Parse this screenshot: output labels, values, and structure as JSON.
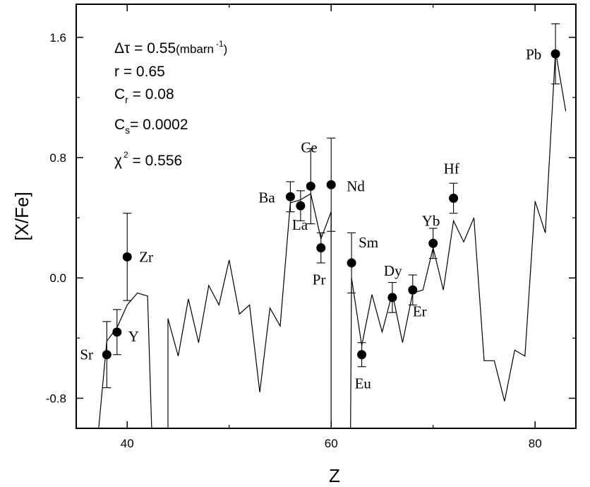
{
  "chart_data": {
    "type": "scatter",
    "xlabel": "Z",
    "ylabel": "[X/Fe]",
    "xlim": [
      35,
      84
    ],
    "ylim": [
      -1.0,
      1.82
    ],
    "x_ticks": [
      40,
      60,
      80
    ],
    "x_tick_labels": [
      "40",
      "60",
      "80"
    ],
    "y_ticks": [
      -0.8,
      0.0,
      0.8,
      1.6
    ],
    "y_tick_labels": [
      "-0.8",
      "0.0",
      "0.8",
      "1.6"
    ],
    "grid": false,
    "annotations": [
      {
        "text": "Δτ = 0.55",
        "unit": "(mbarn",
        "exp": "-1",
        "close": ")"
      },
      {
        "text": " r  = 0.65"
      },
      {
        "text": "C",
        "sub": "r",
        "rest": " = 0.08"
      },
      {
        "text": "C",
        "sub": "s",
        "rest": "= 0.0002"
      },
      {
        "text": "χ",
        "sup": "2",
        "rest": " = 0.556"
      }
    ],
    "points": [
      {
        "label": "Sr",
        "x": 38,
        "y": -0.51,
        "err": 0.22
      },
      {
        "label": "Y",
        "x": 39,
        "y": -0.36,
        "err": 0.15
      },
      {
        "label": "Zr",
        "x": 40,
        "y": 0.14,
        "err": 0.29
      },
      {
        "label": "Ba",
        "x": 56,
        "y": 0.54,
        "err": 0.1
      },
      {
        "label": "La",
        "x": 57,
        "y": 0.48,
        "err": 0.1
      },
      {
        "label": "Ce",
        "x": 58,
        "y": 0.61,
        "err": 0.25
      },
      {
        "label": "Pr",
        "x": 59,
        "y": 0.2,
        "err": 0.1
      },
      {
        "label": "Nd",
        "x": 60,
        "y": 0.62,
        "err": 0.31
      },
      {
        "label": "Sm",
        "x": 62,
        "y": 0.1,
        "err": 0.2
      },
      {
        "label": "Eu",
        "x": 63,
        "y": -0.51,
        "err": 0.08
      },
      {
        "label": "Dy",
        "x": 66,
        "y": -0.13,
        "err": 0.1
      },
      {
        "label": "Er",
        "x": 68,
        "y": -0.08,
        "err": 0.1
      },
      {
        "label": "Yb",
        "x": 70,
        "y": 0.23,
        "err": 0.1
      },
      {
        "label": "Hf",
        "x": 72,
        "y": 0.53,
        "err": 0.1
      },
      {
        "label": "Pb",
        "x": 82,
        "y": 1.49,
        "err": 0.2
      }
    ],
    "model_line": [
      [
        [
          37.2,
          -1.0
        ],
        [
          38.0,
          -0.42
        ],
        [
          39.0,
          -0.33
        ],
        [
          40.0,
          -0.18
        ],
        [
          41.0,
          -0.1
        ],
        [
          42.0,
          -0.12
        ],
        [
          42.4,
          -1.0
        ]
      ],
      [
        [
          44.0,
          -1.0
        ],
        [
          44.0,
          -0.27
        ],
        [
          45.0,
          -0.52
        ],
        [
          46.0,
          -0.14
        ],
        [
          47.0,
          -0.43
        ],
        [
          48.0,
          -0.05
        ],
        [
          49.0,
          -0.18
        ],
        [
          50.0,
          0.12
        ],
        [
          51.0,
          -0.24
        ],
        [
          52.0,
          -0.18
        ],
        [
          53.0,
          -0.76
        ],
        [
          54.0,
          -0.2
        ],
        [
          55.0,
          -0.32
        ],
        [
          56.0,
          0.5
        ],
        [
          57.0,
          0.52
        ],
        [
          58.0,
          0.56
        ],
        [
          59.0,
          0.26
        ],
        [
          60.0,
          0.44
        ],
        [
          60.0,
          -1.0
        ]
      ],
      [
        [
          61.9,
          -1.0
        ],
        [
          62.0,
          0.0
        ],
        [
          63.0,
          -0.45
        ],
        [
          64.0,
          -0.11
        ],
        [
          65.0,
          -0.36
        ],
        [
          66.0,
          -0.1
        ],
        [
          67.0,
          -0.43
        ],
        [
          68.0,
          -0.1
        ],
        [
          69.0,
          -0.08
        ],
        [
          70.0,
          0.2
        ],
        [
          71.0,
          -0.08
        ],
        [
          72.0,
          0.38
        ],
        [
          73.0,
          0.24
        ],
        [
          74.0,
          0.4
        ],
        [
          75.0,
          -0.55
        ],
        [
          76.0,
          -0.55
        ],
        [
          77.0,
          -0.82
        ],
        [
          78.0,
          -0.48
        ],
        [
          79.0,
          -0.52
        ],
        [
          80.0,
          0.51
        ],
        [
          81.0,
          0.3
        ],
        [
          82.0,
          1.51
        ],
        [
          83.0,
          1.11
        ]
      ]
    ]
  }
}
